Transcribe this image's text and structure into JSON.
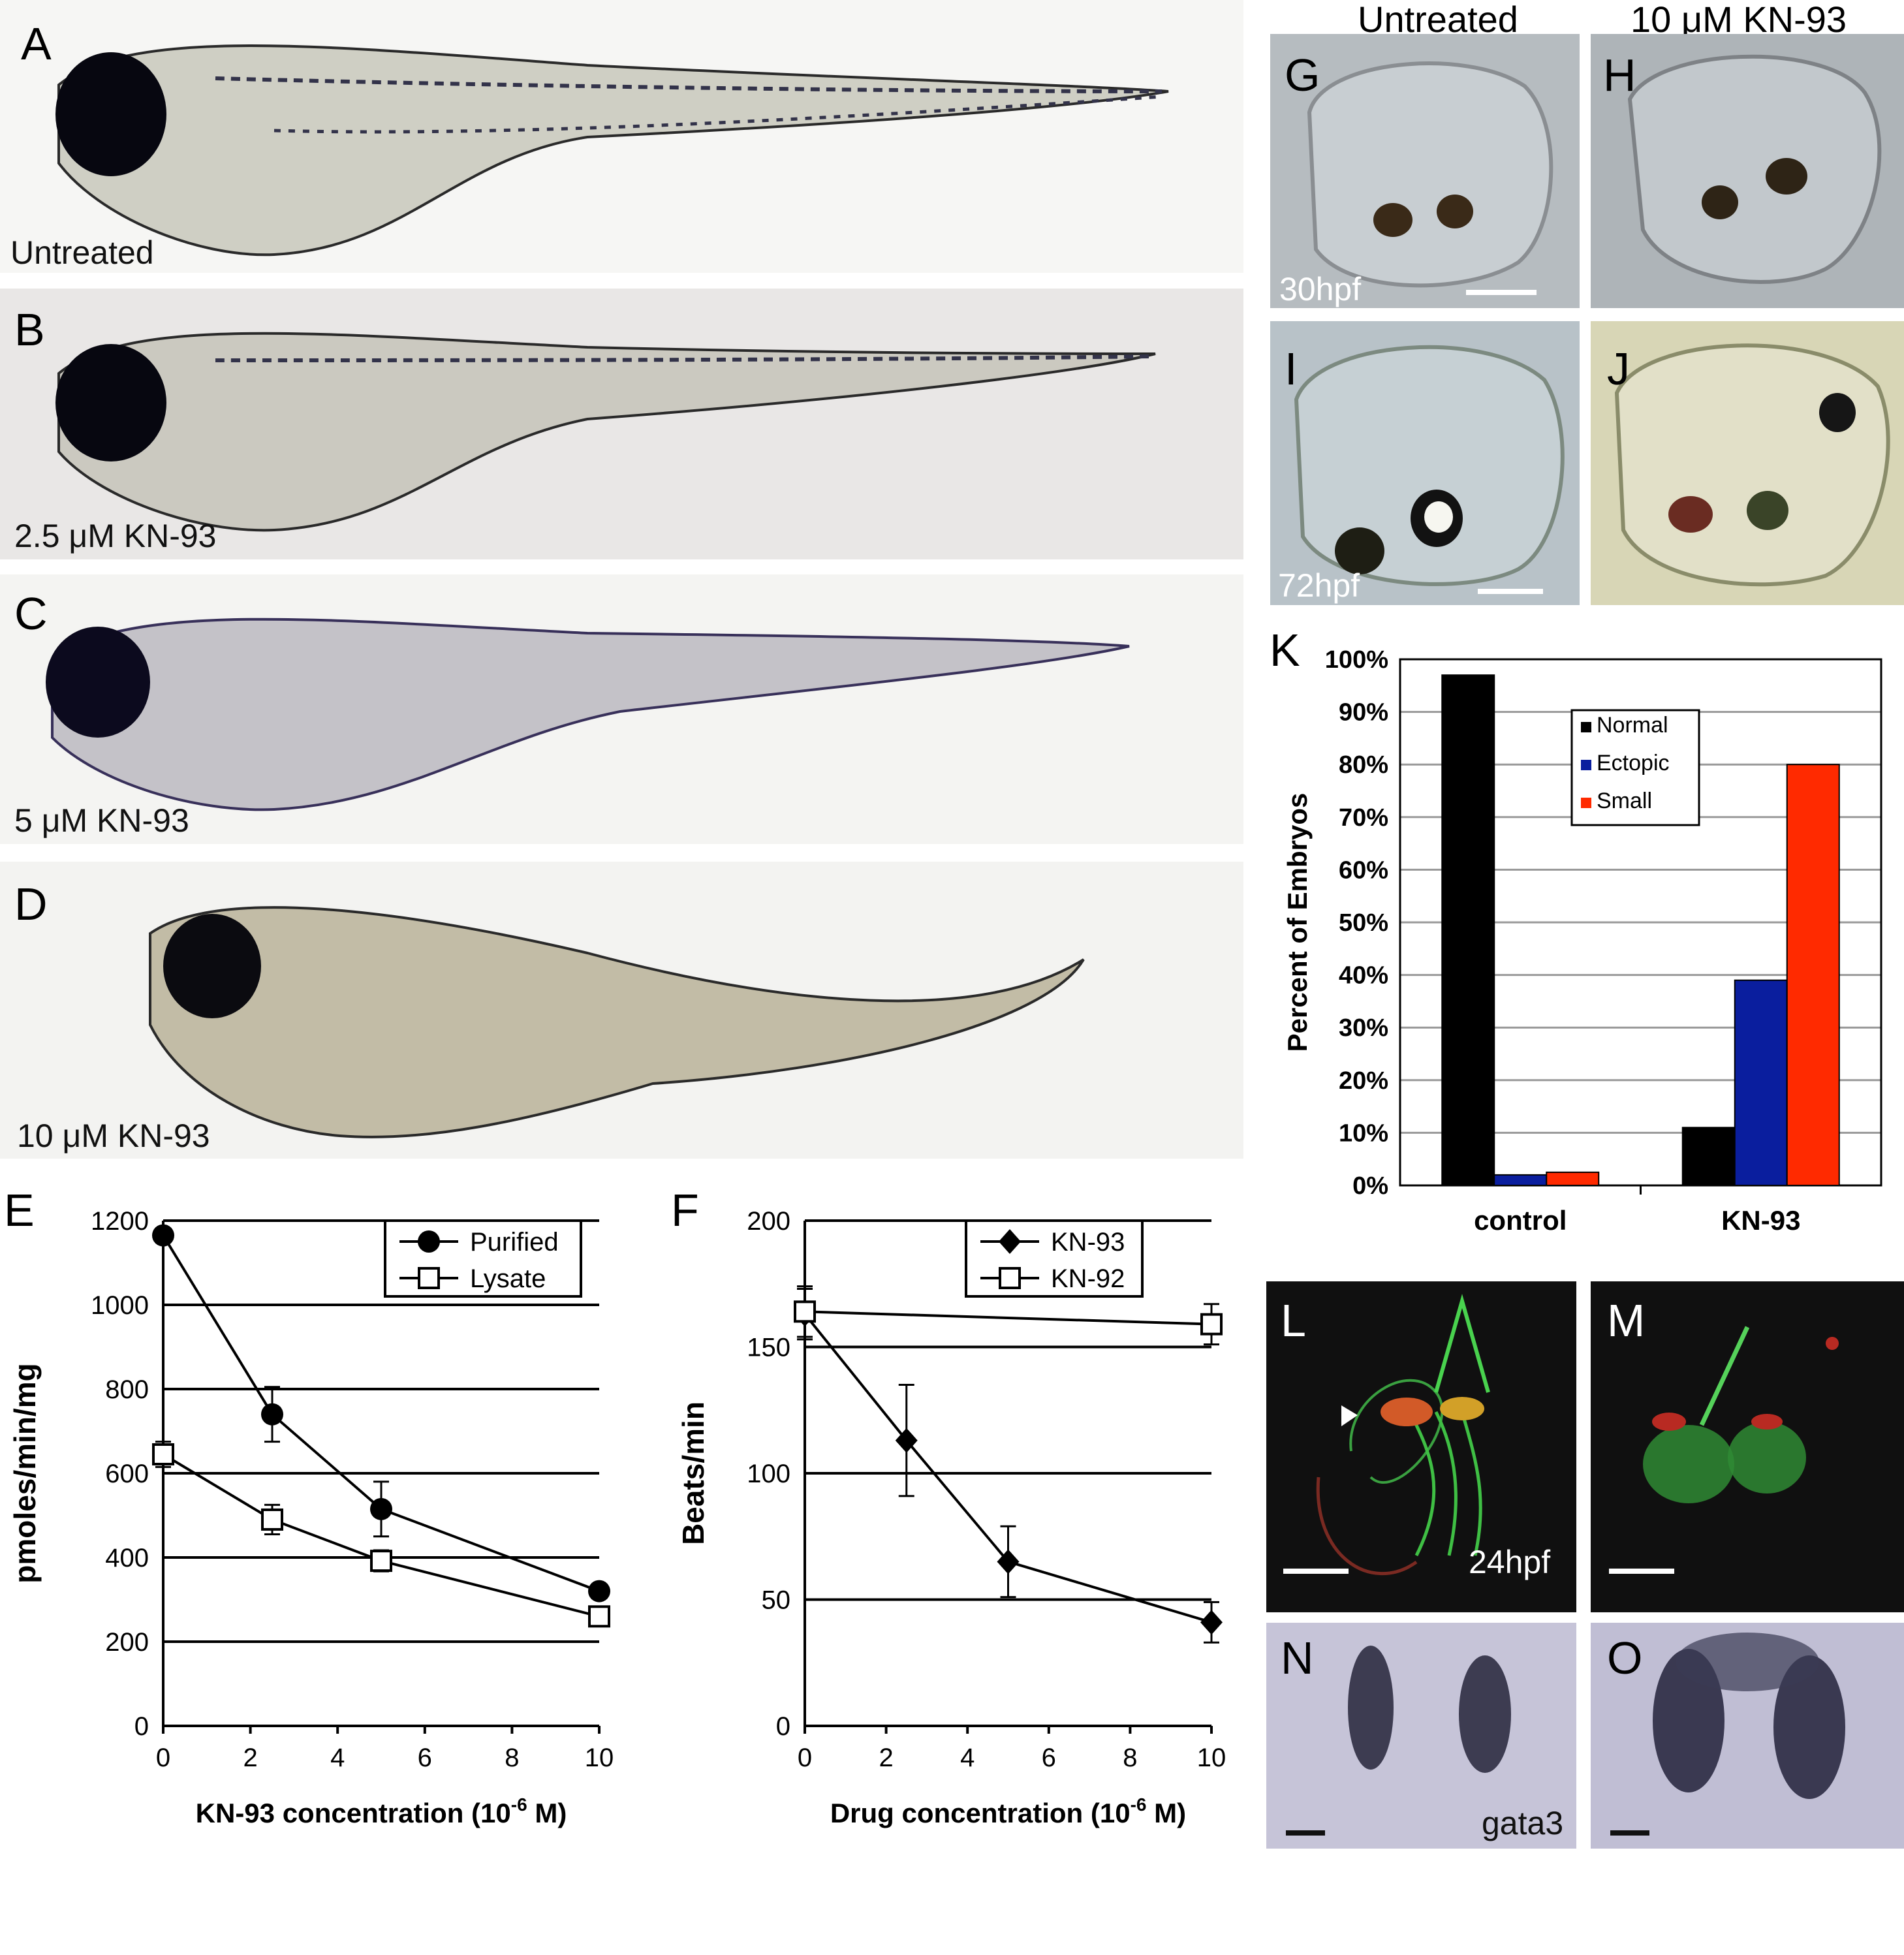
{
  "larvae_panels": [
    {
      "letter": "A",
      "caption": "Untreated"
    },
    {
      "letter": "B",
      "caption": "2.5 μM KN-93"
    },
    {
      "letter": "C",
      "caption": "5 μM KN-93"
    },
    {
      "letter": "D",
      "caption": "10 μM KN-93"
    }
  ],
  "otic_panels": {
    "col_titles": [
      "Untreated",
      "10 μM KN-93"
    ],
    "G": {
      "letter": "G",
      "caption": "30hpf"
    },
    "H": {
      "letter": "H"
    },
    "I": {
      "letter": "I",
      "caption": "72hpf"
    },
    "J": {
      "letter": "J"
    },
    "L": {
      "letter": "L",
      "caption": "24hpf"
    },
    "M": {
      "letter": "M"
    },
    "N": {
      "letter": "N",
      "caption": "gata3"
    },
    "O": {
      "letter": "O"
    }
  },
  "colors": {
    "normal": "#000000",
    "ectopic": "#0a1e9e",
    "small": "#ff2a00",
    "larva_bg": "#f4f4f2",
    "otic_bg": "#b6bcc0",
    "fluor_bg": "#101010",
    "insitu_bg": "#c6c4d8"
  },
  "chart_data": [
    {
      "panel": "E",
      "type": "line",
      "xlabel": "KN-93 concentration (10",
      "xlabel_sup": "-6",
      "xlabel_end": " M)",
      "ylabel": "pmoles/min/mg",
      "xlim": [
        0,
        10
      ],
      "ylim": [
        0,
        1200
      ],
      "xticks": [
        0,
        2,
        4,
        6,
        8,
        10
      ],
      "yticks": [
        0,
        200,
        400,
        600,
        800,
        1000,
        1200
      ],
      "grid": "horizontal",
      "legend": "top-right",
      "series": [
        {
          "name": "Purified",
          "marker": "circle",
          "x": [
            0,
            2.5,
            5,
            10
          ],
          "y": [
            1165,
            740,
            515,
            320
          ],
          "err": [
            0,
            65,
            65,
            15
          ]
        },
        {
          "name": "Lysate",
          "marker": "open-square",
          "x": [
            0,
            2.5,
            5,
            10
          ],
          "y": [
            645,
            490,
            392,
            260
          ],
          "err": [
            30,
            35,
            25,
            10
          ]
        }
      ]
    },
    {
      "panel": "F",
      "type": "line",
      "xlabel": "Drug concentration (10",
      "xlabel_sup": "-6",
      "xlabel_end": " M)",
      "ylabel": "Beats/min",
      "xlim": [
        0,
        10
      ],
      "ylim": [
        0,
        200
      ],
      "xticks": [
        0,
        2,
        4,
        6,
        8,
        10
      ],
      "yticks": [
        0,
        50,
        100,
        150,
        200
      ],
      "grid": "horizontal",
      "legend": "top-right",
      "series": [
        {
          "name": "KN-93",
          "marker": "diamond",
          "x": [
            0,
            2.5,
            5,
            10
          ],
          "y": [
            163,
            113,
            65,
            41
          ],
          "err": [
            10,
            22,
            14,
            8
          ]
        },
        {
          "name": "KN-92",
          "marker": "open-square",
          "x": [
            0,
            10
          ],
          "y": [
            164,
            159
          ],
          "err": [
            10,
            8
          ]
        }
      ]
    },
    {
      "panel": "K",
      "type": "bar",
      "categories": [
        "control",
        "KN-93"
      ],
      "ylabel": "Percent of Embryos",
      "ylim": [
        0,
        100
      ],
      "yticks": [
        "0%",
        "10%",
        "20%",
        "30%",
        "40%",
        "50%",
        "60%",
        "70%",
        "80%",
        "90%",
        "100%"
      ],
      "grid": "horizontal",
      "legend": "top-center",
      "series": [
        {
          "name": "Normal",
          "values": [
            97,
            11
          ]
        },
        {
          "name": "Ectopic",
          "values": [
            2,
            39
          ]
        },
        {
          "name": "Small",
          "values": [
            2.5,
            80
          ]
        }
      ]
    }
  ]
}
